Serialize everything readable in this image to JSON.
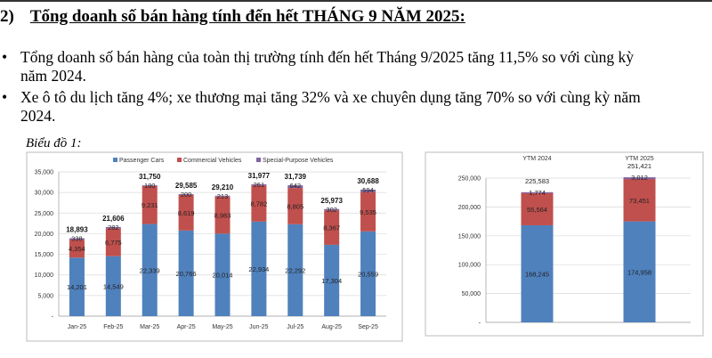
{
  "heading": {
    "number": "2)",
    "title": "Tổng doanh số bán hàng tính đến hết THÁNG 9 NĂM 2025:"
  },
  "bullets": [
    {
      "symbol": "•",
      "lines": [
        "Tổng doanh số bán hàng của toàn thị trường tính đến hết Tháng 9/2025 tăng 11,5% so với cùng kỳ",
        "năm 2024."
      ]
    },
    {
      "symbol": "•",
      "lines": [
        "Xe ô tô du lịch tăng 4%; xe thương mại tăng 32% và xe chuyên dụng tăng 70% so với cùng kỳ năm",
        "2024."
      ]
    }
  ],
  "caption": "Biểu đồ 1:",
  "colors": {
    "passenger": "#4f81bd",
    "commercial": "#c0504d",
    "special": "#8064a2"
  },
  "chart_data": [
    {
      "type": "bar",
      "stacked": true,
      "title": "",
      "legend": [
        "Passenger Cars",
        "Commercial Vehicles",
        "Special-Purpose Vehicles"
      ],
      "legend_position": "top",
      "categories": [
        "Jan-25",
        "Feb-25",
        "Mar-25",
        "Apr-25",
        "May-25",
        "Jun-25",
        "Jul-25",
        "Aug-25",
        "Sep-25"
      ],
      "series": [
        {
          "name": "Passenger Cars",
          "values": [
            14201,
            14549,
            22339,
            20766,
            20014,
            22934,
            22292,
            17304,
            20559
          ]
        },
        {
          "name": "Commercial Vehicles",
          "values": [
            4354,
            6775,
            9231,
            8619,
            8983,
            8782,
            8805,
            8367,
            9535
          ]
        },
        {
          "name": "Special-Purpose Vehicles",
          "values": [
            338,
            282,
            180,
            200,
            213,
            261,
            642,
            302,
            594
          ]
        }
      ],
      "totals": [
        18893,
        21606,
        31750,
        29585,
        29210,
        31977,
        31739,
        25973,
        30688
      ],
      "ylim": [
        0,
        35000
      ],
      "yticks": [
        "-",
        "5,000",
        "10,000",
        "15,000",
        "20,000",
        "25,000",
        "30,000",
        "35,000"
      ],
      "grid": true
    },
    {
      "type": "bar",
      "stacked": true,
      "categories": [
        "YTM 2024",
        "YTM 2025"
      ],
      "series": [
        {
          "name": "Passenger Cars",
          "values": [
            168245,
            174958
          ]
        },
        {
          "name": "Commercial Vehicles",
          "values": [
            55564,
            73451
          ]
        },
        {
          "name": "Special-Purpose Vehicles",
          "values": [
            1774,
            3012
          ]
        }
      ],
      "totals": [
        225583,
        251421
      ],
      "ylim": [
        0,
        250000
      ],
      "yticks": [
        "-",
        "50,000",
        "100,000",
        "150,000",
        "200,000",
        "250,000"
      ],
      "grid": true
    }
  ]
}
